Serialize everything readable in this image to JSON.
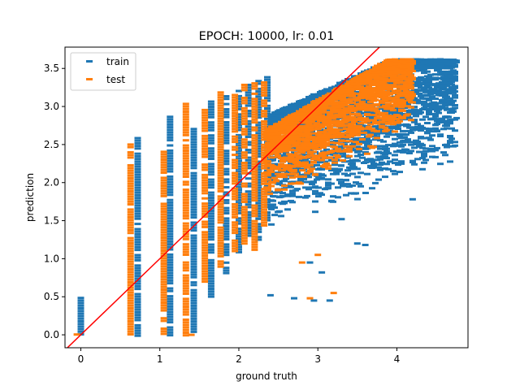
{
  "chart_data": {
    "type": "scatter",
    "title": "EPOCH: 10000, lr: 0.01",
    "xlabel": "ground truth",
    "ylabel": "prediction",
    "xlim": [
      -0.2,
      4.9
    ],
    "ylim": [
      -0.17,
      3.78
    ],
    "xticks": [
      0,
      1,
      2,
      3,
      4
    ],
    "yticks": [
      0.0,
      0.5,
      1.0,
      1.5,
      2.0,
      2.5,
      3.0,
      3.5
    ],
    "ytick_labels": [
      "0.0",
      "0.5",
      "1.0",
      "1.5",
      "2.0",
      "2.5",
      "3.0",
      "3.5"
    ],
    "legend_position": "upper-left",
    "series": [
      {
        "name": "train",
        "color": "#1f77b4",
        "marker": "hline",
        "columns": [
          {
            "x": 0.0,
            "ymin": 0.0,
            "ymax": 0.5
          },
          {
            "x": 0.72,
            "ymin": 0.0,
            "ymax": 2.6
          },
          {
            "x": 1.13,
            "ymin": 0.0,
            "ymax": 2.88
          },
          {
            "x": 1.43,
            "ymin": 0.05,
            "ymax": 2.72
          },
          {
            "x": 1.65,
            "ymin": 0.5,
            "ymax": 3.08
          },
          {
            "x": 1.84,
            "ymin": 0.8,
            "ymax": 3.15
          },
          {
            "x": 2.0,
            "ymin": 1.1,
            "ymax": 3.22
          },
          {
            "x": 2.12,
            "ymin": 1.3,
            "ymax": 3.3
          },
          {
            "x": 2.25,
            "ymin": 1.25,
            "ymax": 3.35
          },
          {
            "x": 2.36,
            "ymin": 1.5,
            "ymax": 3.4
          }
        ],
        "cloud": {
          "xmin": 2.4,
          "xmax": 4.75,
          "ymin": 1.3,
          "ymax": 3.62,
          "outliers": [
            [
              2.4,
              0.52
            ],
            [
              2.7,
              0.48
            ],
            [
              2.95,
              0.45
            ],
            [
              3.05,
              0.82
            ],
            [
              3.15,
              0.45
            ],
            [
              2.9,
              0.95
            ],
            [
              3.3,
              1.52
            ],
            [
              3.5,
              1.2
            ],
            [
              3.6,
              1.18
            ],
            [
              4.2,
              1.78
            ]
          ]
        }
      },
      {
        "name": "test",
        "color": "#ff7f0e",
        "marker": "hline",
        "columns": [
          {
            "x": -0.05,
            "ymin": 0.0,
            "ymax": 0.02
          },
          {
            "x": 0.63,
            "ymin": 0.0,
            "ymax": 2.55
          },
          {
            "x": 1.05,
            "ymin": 0.0,
            "ymax": 2.42
          },
          {
            "x": 1.33,
            "ymin": 0.0,
            "ymax": 3.05
          },
          {
            "x": 1.57,
            "ymin": 0.7,
            "ymax": 2.97
          },
          {
            "x": 1.77,
            "ymin": 0.9,
            "ymax": 3.2
          },
          {
            "x": 1.95,
            "ymin": 1.1,
            "ymax": 3.2
          },
          {
            "x": 2.07,
            "ymin": 1.2,
            "ymax": 3.3
          },
          {
            "x": 2.2,
            "ymin": 1.05,
            "ymax": 3.32
          },
          {
            "x": 2.32,
            "ymin": 1.4,
            "ymax": 3.4
          }
        ],
        "cloud": {
          "xmin": 2.35,
          "xmax": 4.2,
          "ymin": 1.8,
          "ymax": 3.62,
          "outliers": [
            [
              2.8,
              0.95
            ],
            [
              3.0,
              1.05
            ],
            [
              2.9,
              0.48
            ],
            [
              3.2,
              0.55
            ],
            [
              1.4,
              0.0
            ]
          ]
        }
      }
    ],
    "reference_line": {
      "color": "#ff0000",
      "slope": 1,
      "intercept": 0
    }
  }
}
